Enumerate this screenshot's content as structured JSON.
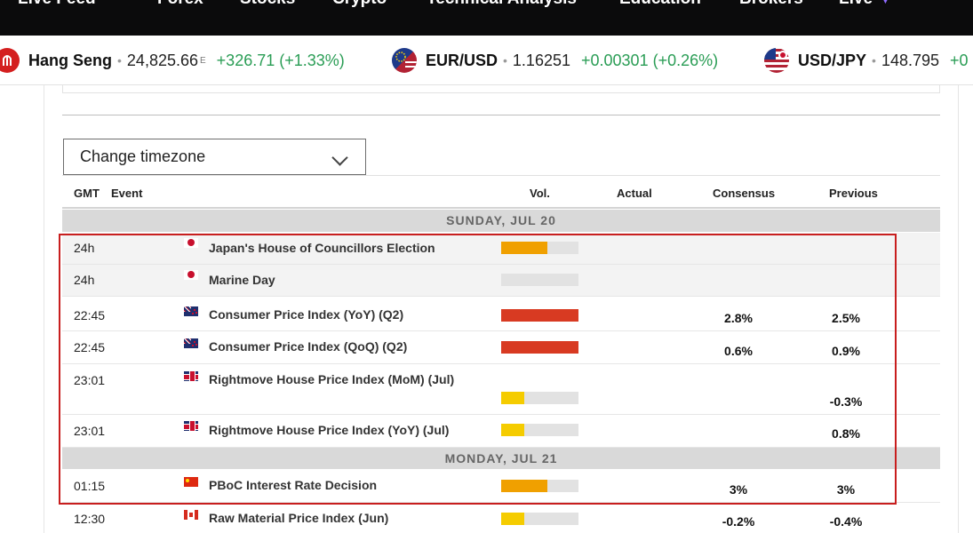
{
  "nav": {
    "items": [
      "Live Feed",
      "Forex",
      "Stocks",
      "Crypto",
      "Technical Analysis",
      "Education",
      "Brokers",
      "Live"
    ]
  },
  "ticker": [
    {
      "name": "Hang Seng",
      "price": "24,825.66",
      "sup": "E",
      "change": "+326.71 (+1.33%)",
      "icon": "hang-seng-icon",
      "color": "#2a9d55"
    },
    {
      "name": "EUR/USD",
      "price": "1.16251",
      "sup": "",
      "change": "+0.00301 (+0.26%)",
      "icon": "eur-usd-flag-icon",
      "color": "#2a9d55"
    },
    {
      "name": "USD/JPY",
      "price": "148.795",
      "sup": "",
      "change": "+0",
      "icon": "usd-jpy-flag-icon",
      "color": "#2a9d55"
    }
  ],
  "timezone": {
    "label": "Change timezone"
  },
  "table": {
    "headers": {
      "gmt": "GMT",
      "event": "Event",
      "vol": "Vol.",
      "actual": "Actual",
      "consensus": "Consensus",
      "previous": "Previous"
    },
    "days": [
      "SUNDAY, JUL 20",
      "MONDAY, JUL 21"
    ],
    "rows": [
      {
        "time": "24h",
        "flag": "jp",
        "event": "Japan's House of Councillors Election",
        "volume": 0.6,
        "vol_color": "#f0a000",
        "actual": "",
        "consensus": "",
        "previous": ""
      },
      {
        "time": "24h",
        "flag": "jp",
        "event": "Marine Day",
        "volume": 0,
        "vol_color": "#e2e2e2",
        "actual": "",
        "consensus": "",
        "previous": ""
      },
      {
        "time": "22:45",
        "flag": "nz",
        "event": "Consumer Price Index (YoY) (Q2)",
        "volume": 1,
        "vol_color": "#d83a22",
        "actual": "",
        "consensus": "2.8%",
        "previous": "2.5%"
      },
      {
        "time": "22:45",
        "flag": "nz",
        "event": "Consumer Price Index (QoQ) (Q2)",
        "volume": 1,
        "vol_color": "#d83a22",
        "actual": "",
        "consensus": "0.6%",
        "previous": "0.9%"
      },
      {
        "time": "23:01",
        "flag": "gb",
        "event": "Rightmove House Price Index (MoM) (Jul)",
        "volume": 0.3,
        "vol_color": "#f5cc00",
        "actual": "",
        "consensus": "",
        "previous": "-0.3%"
      },
      {
        "time": "23:01",
        "flag": "gb",
        "event": "Rightmove House Price Index (YoY) (Jul)",
        "volume": 0.3,
        "vol_color": "#f5cc00",
        "actual": "",
        "consensus": "",
        "previous": "0.8%"
      },
      {
        "time": "01:15",
        "flag": "cn",
        "event": "PBoC Interest Rate Decision",
        "volume": 0.6,
        "vol_color": "#f0a000",
        "actual": "",
        "consensus": "3%",
        "previous": "3%"
      },
      {
        "time": "12:30",
        "flag": "ca",
        "event": "Raw Material Price Index (Jun)",
        "volume": 0.3,
        "vol_color": "#f5cc00",
        "actual": "",
        "consensus": "-0.2%",
        "previous": "-0.4%"
      }
    ]
  },
  "highlight_color": "#c81e1e"
}
